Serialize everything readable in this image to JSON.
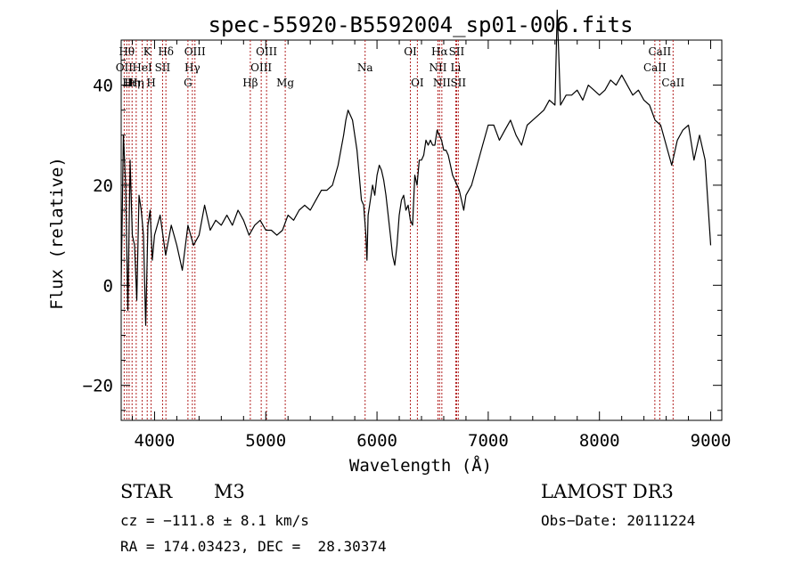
{
  "chart_data": {
    "type": "line",
    "title": "spec-55920-B5592004_sp01-006.fits",
    "xlabel": "Wavelength (Å)",
    "ylabel": "Flux (relative)",
    "xlim": [
      3700,
      9100
    ],
    "ylim": [
      -27,
      49
    ],
    "xticks": [
      4000,
      5000,
      6000,
      7000,
      8000,
      9000
    ],
    "yticks": [
      -20,
      0,
      20,
      40
    ],
    "grid": false,
    "line_color": "#000000",
    "marker_color": "#b22222",
    "series": [
      {
        "name": "spectrum",
        "x": [
          3700,
          3720,
          3740,
          3760,
          3780,
          3800,
          3820,
          3840,
          3860,
          3880,
          3900,
          3920,
          3940,
          3960,
          3980,
          4000,
          4050,
          4100,
          4150,
          4200,
          4250,
          4300,
          4350,
          4400,
          4450,
          4500,
          4550,
          4600,
          4650,
          4700,
          4750,
          4800,
          4850,
          4900,
          4950,
          5000,
          5050,
          5100,
          5150,
          5200,
          5250,
          5300,
          5350,
          5400,
          5450,
          5500,
          5550,
          5600,
          5650,
          5700,
          5720,
          5740,
          5760,
          5780,
          5800,
          5820,
          5840,
          5860,
          5880,
          5900,
          5910,
          5920,
          5940,
          5960,
          5980,
          6000,
          6020,
          6040,
          6060,
          6080,
          6100,
          6120,
          6140,
          6160,
          6180,
          6200,
          6220,
          6240,
          6260,
          6280,
          6300,
          6320,
          6340,
          6360,
          6380,
          6400,
          6420,
          6440,
          6460,
          6480,
          6500,
          6520,
          6540,
          6560,
          6580,
          6600,
          6620,
          6640,
          6660,
          6680,
          6700,
          6720,
          6740,
          6760,
          6780,
          6800,
          6850,
          6900,
          6950,
          7000,
          7050,
          7100,
          7150,
          7200,
          7250,
          7300,
          7350,
          7400,
          7450,
          7500,
          7550,
          7600,
          7620,
          7650,
          7700,
          7750,
          7800,
          7850,
          7900,
          7950,
          8000,
          8050,
          8100,
          8150,
          8200,
          8250,
          8300,
          8350,
          8400,
          8450,
          8500,
          8550,
          8600,
          8650,
          8700,
          8750,
          8800,
          8850,
          8900,
          8950,
          9000
        ],
        "y": [
          0,
          30,
          20,
          -5,
          25,
          10,
          8,
          -3,
          18,
          15,
          10,
          -8,
          12,
          15,
          5,
          10,
          14,
          6,
          12,
          8,
          3,
          12,
          8,
          10,
          16,
          11,
          13,
          12,
          14,
          12,
          15,
          13,
          10,
          12,
          13,
          11,
          11,
          10,
          11,
          14,
          13,
          15,
          16,
          15,
          17,
          19,
          19,
          20,
          24,
          30,
          33,
          35,
          34,
          33,
          30,
          27,
          22,
          17,
          16,
          10,
          5,
          14,
          17,
          20,
          18,
          22,
          24,
          23,
          21,
          18,
          14,
          10,
          6,
          4,
          8,
          14,
          17,
          18,
          15,
          16,
          13,
          12,
          22,
          20,
          25,
          25,
          26,
          29,
          28,
          29,
          28,
          28,
          31,
          30,
          29,
          27,
          27,
          26,
          24,
          22,
          21,
          20,
          19,
          17,
          15,
          18,
          20,
          24,
          28,
          32,
          32,
          29,
          31,
          33,
          30,
          28,
          32,
          33,
          34,
          35,
          37,
          36,
          55,
          36,
          38,
          38,
          39,
          37,
          40,
          39,
          38,
          39,
          41,
          40,
          42,
          40,
          38,
          39,
          37,
          36,
          33,
          32,
          28,
          24,
          29,
          31,
          32,
          25,
          30,
          25,
          8
        ]
      }
    ],
    "lines": [
      {
        "wl": 3727,
        "label": "OII",
        "row": 1
      },
      {
        "wl": 3750,
        "label": "Hθ",
        "row": 0
      },
      {
        "wl": 3771,
        "label": "Hι",
        "row": 2
      },
      {
        "wl": 3798,
        "label": "Hη",
        "row": 2
      },
      {
        "wl": 3835,
        "label": "Hη",
        "row": 2
      },
      {
        "wl": 3889,
        "label": "HeI",
        "row": 1
      },
      {
        "wl": 3934,
        "label": "K",
        "row": 0
      },
      {
        "wl": 3969,
        "label": "H",
        "row": 2
      },
      {
        "wl": 4072,
        "label": "SII",
        "row": 1
      },
      {
        "wl": 4102,
        "label": "Hδ",
        "row": 0
      },
      {
        "wl": 4300,
        "label": "G",
        "row": 2
      },
      {
        "wl": 4340,
        "label": "Hγ",
        "row": 1
      },
      {
        "wl": 4363,
        "label": "OIII",
        "row": 0
      },
      {
        "wl": 4861,
        "label": "Hβ",
        "row": 2
      },
      {
        "wl": 4959,
        "label": "OIII",
        "row": 1
      },
      {
        "wl": 5007,
        "label": "OIII",
        "row": 0
      },
      {
        "wl": 5175,
        "label": "Mg",
        "row": 2
      },
      {
        "wl": 5893,
        "label": "Na",
        "row": 1
      },
      {
        "wl": 6300,
        "label": "OI",
        "row": 0
      },
      {
        "wl": 6363,
        "label": "OI",
        "row": 2
      },
      {
        "wl": 6548,
        "label": "NII",
        "row": 1
      },
      {
        "wl": 6563,
        "label": "Hα",
        "row": 0
      },
      {
        "wl": 6583,
        "label": "NII",
        "row": 2
      },
      {
        "wl": 6708,
        "label": "Li",
        "row": 1
      },
      {
        "wl": 6716,
        "label": "SII",
        "row": 0
      },
      {
        "wl": 6731,
        "label": "SII",
        "row": 2
      },
      {
        "wl": 8498,
        "label": "CaII",
        "row": 1
      },
      {
        "wl": 8542,
        "label": "CaII",
        "row": 0
      },
      {
        "wl": 8662,
        "label": "CaII",
        "row": 2
      }
    ]
  },
  "info": {
    "class": "STAR",
    "subclass": "M3",
    "survey": "LAMOST DR3",
    "velocity": "cz = −111.8 ± 8.1 km/s",
    "obs_date": "Obs−Date: 20111224",
    "coords": "RA = 174.03423, DEC =  28.30374"
  }
}
